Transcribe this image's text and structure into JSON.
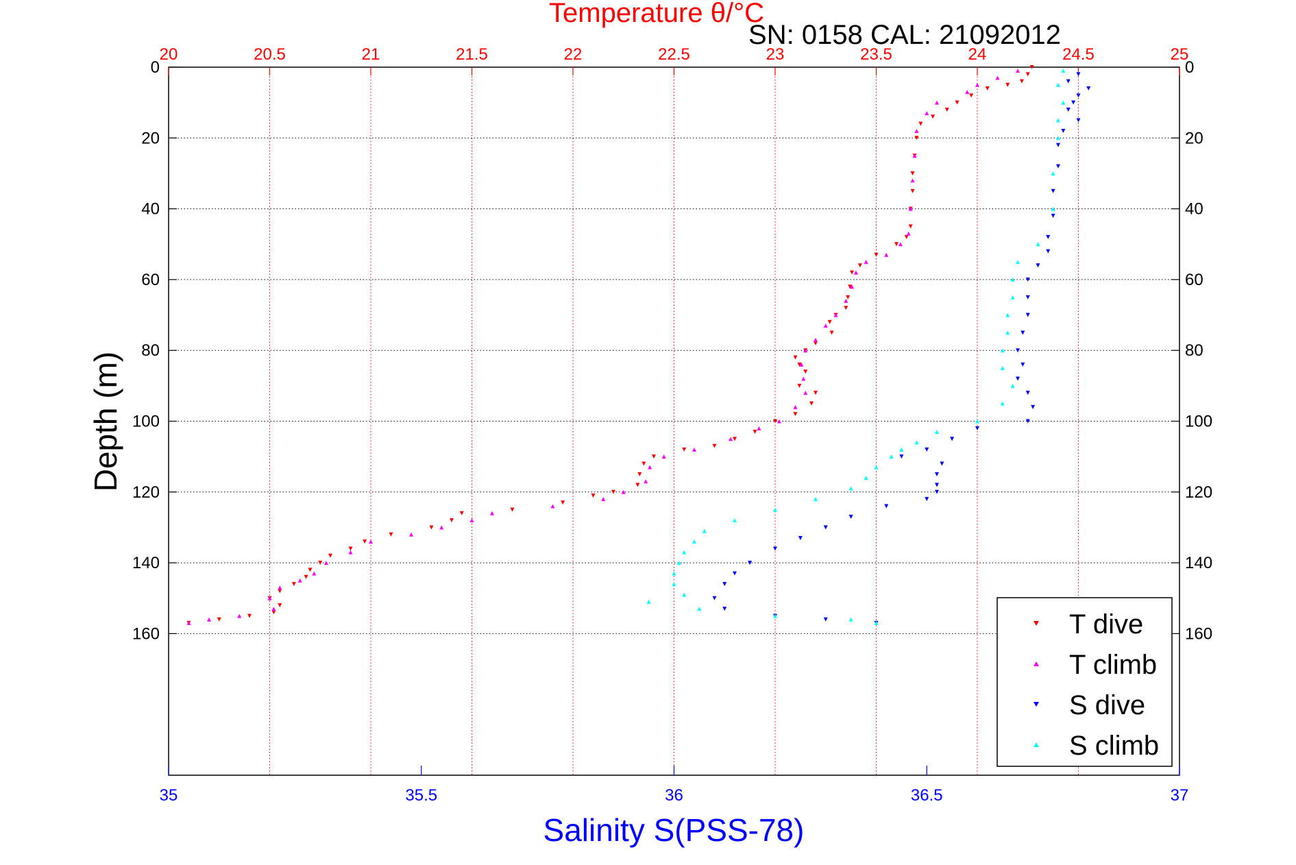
{
  "chart_data": {
    "type": "scatter",
    "title": "Temperature θ/°C",
    "subtitle": "SN: 0158  CAL: 21092012",
    "xlabel_top": "Temperature θ/°C",
    "xlabel_bottom": "Salinity S(PSS-78)",
    "ylabel": "Depth (m)",
    "temp_axis": {
      "range": [
        20,
        25
      ],
      "ticks": [
        "20",
        "20.5",
        "21",
        "21.5",
        "22",
        "22.5",
        "23",
        "23.5",
        "24",
        "24.5",
        "25"
      ]
    },
    "sal_axis": {
      "range": [
        35,
        37
      ],
      "ticks": [
        "35",
        "35.5",
        "36",
        "36.5",
        "37"
      ]
    },
    "depth_axis": {
      "range": [
        0,
        200
      ],
      "reversed": true,
      "ticks": [
        "0",
        "20",
        "40",
        "60",
        "80",
        "100",
        "120",
        "140",
        "160"
      ]
    },
    "grid": true,
    "legend_position": "bottom-right",
    "colors": {
      "t_dive": "#ff0000",
      "t_climb": "#ff00ff",
      "s_dive": "#0000ff",
      "s_climb": "#00ffff",
      "temp_axis": "#ff0000",
      "sal_axis": "#0000ff"
    },
    "series": [
      {
        "name": "T dive",
        "axis": "temperature",
        "marker": "triangle-down",
        "color": "#ff0000",
        "points": [
          [
            24.27,
            0
          ],
          [
            24.25,
            2
          ],
          [
            24.22,
            4
          ],
          [
            24.15,
            5
          ],
          [
            24.05,
            6
          ],
          [
            23.97,
            8
          ],
          [
            23.9,
            10
          ],
          [
            23.85,
            12
          ],
          [
            23.78,
            14
          ],
          [
            23.72,
            16
          ],
          [
            23.7,
            20
          ],
          [
            23.69,
            25
          ],
          [
            23.68,
            30
          ],
          [
            23.68,
            35
          ],
          [
            23.67,
            40
          ],
          [
            23.67,
            45
          ],
          [
            23.65,
            48
          ],
          [
            23.6,
            50
          ],
          [
            23.5,
            53
          ],
          [
            23.42,
            56
          ],
          [
            23.38,
            58
          ],
          [
            23.37,
            62
          ],
          [
            23.36,
            65
          ],
          [
            23.35,
            68
          ],
          [
            23.3,
            70
          ],
          [
            23.27,
            72
          ],
          [
            23.28,
            75
          ],
          [
            23.2,
            78
          ],
          [
            23.15,
            80
          ],
          [
            23.1,
            82
          ],
          [
            23.12,
            84
          ],
          [
            23.15,
            86
          ],
          [
            23.12,
            90
          ],
          [
            23.2,
            92
          ],
          [
            23.18,
            95
          ],
          [
            23.1,
            98
          ],
          [
            23.0,
            100
          ],
          [
            22.9,
            103
          ],
          [
            22.8,
            105
          ],
          [
            22.7,
            107
          ],
          [
            22.55,
            108
          ],
          [
            22.4,
            110
          ],
          [
            22.35,
            112
          ],
          [
            22.33,
            115
          ],
          [
            22.32,
            118
          ],
          [
            22.2,
            120
          ],
          [
            22.1,
            121
          ],
          [
            21.95,
            123
          ],
          [
            21.7,
            125
          ],
          [
            21.45,
            126
          ],
          [
            21.4,
            128
          ],
          [
            21.3,
            130
          ],
          [
            21.1,
            132
          ],
          [
            20.97,
            134
          ],
          [
            20.9,
            136
          ],
          [
            20.8,
            138
          ],
          [
            20.75,
            140
          ],
          [
            20.7,
            142
          ],
          [
            20.68,
            144
          ],
          [
            20.62,
            146
          ],
          [
            20.55,
            148
          ],
          [
            20.5,
            150
          ],
          [
            20.55,
            152
          ],
          [
            20.52,
            154
          ],
          [
            20.4,
            155
          ],
          [
            20.25,
            156
          ],
          [
            20.1,
            157
          ]
        ]
      },
      {
        "name": "T climb",
        "axis": "temperature",
        "marker": "triangle-up",
        "color": "#ff00ff",
        "points": [
          [
            24.2,
            1
          ],
          [
            24.1,
            3
          ],
          [
            24.0,
            5
          ],
          [
            23.95,
            7
          ],
          [
            23.8,
            10
          ],
          [
            23.75,
            13
          ],
          [
            23.7,
            18
          ],
          [
            23.69,
            25
          ],
          [
            23.68,
            32
          ],
          [
            23.67,
            40
          ],
          [
            23.66,
            47
          ],
          [
            23.62,
            50
          ],
          [
            23.55,
            53
          ],
          [
            23.45,
            55
          ],
          [
            23.4,
            58
          ],
          [
            23.38,
            62
          ],
          [
            23.35,
            66
          ],
          [
            23.3,
            70
          ],
          [
            23.25,
            73
          ],
          [
            23.2,
            77
          ],
          [
            23.15,
            80
          ],
          [
            23.13,
            84
          ],
          [
            23.14,
            88
          ],
          [
            23.15,
            92
          ],
          [
            23.1,
            96
          ],
          [
            23.02,
            100
          ],
          [
            22.92,
            102
          ],
          [
            22.78,
            105
          ],
          [
            22.6,
            108
          ],
          [
            22.45,
            110
          ],
          [
            22.38,
            113
          ],
          [
            22.36,
            117
          ],
          [
            22.25,
            120
          ],
          [
            22.15,
            122
          ],
          [
            21.9,
            124
          ],
          [
            21.6,
            126
          ],
          [
            21.5,
            128
          ],
          [
            21.35,
            130
          ],
          [
            21.2,
            132
          ],
          [
            21.0,
            134
          ],
          [
            20.9,
            137
          ],
          [
            20.78,
            140
          ],
          [
            20.72,
            143
          ],
          [
            20.65,
            145
          ],
          [
            20.55,
            147
          ],
          [
            20.5,
            150
          ],
          [
            20.52,
            153
          ],
          [
            20.35,
            155
          ],
          [
            20.2,
            156
          ],
          [
            20.1,
            157
          ]
        ]
      },
      {
        "name": "S dive",
        "axis": "salinity",
        "marker": "triangle-down",
        "color": "#0000ff",
        "points": [
          [
            36.8,
            2
          ],
          [
            36.78,
            4
          ],
          [
            36.82,
            6
          ],
          [
            36.8,
            8
          ],
          [
            36.79,
            10
          ],
          [
            36.78,
            12
          ],
          [
            36.8,
            15
          ],
          [
            36.77,
            18
          ],
          [
            36.76,
            22
          ],
          [
            36.76,
            28
          ],
          [
            36.75,
            35
          ],
          [
            36.75,
            42
          ],
          [
            36.74,
            48
          ],
          [
            36.74,
            52
          ],
          [
            36.72,
            56
          ],
          [
            36.7,
            60
          ],
          [
            36.7,
            65
          ],
          [
            36.7,
            70
          ],
          [
            36.69,
            75
          ],
          [
            36.68,
            80
          ],
          [
            36.69,
            84
          ],
          [
            36.68,
            88
          ],
          [
            36.7,
            92
          ],
          [
            36.71,
            96
          ],
          [
            36.7,
            100
          ],
          [
            36.6,
            102
          ],
          [
            36.55,
            105
          ],
          [
            36.5,
            108
          ],
          [
            36.45,
            110
          ],
          [
            36.53,
            112
          ],
          [
            36.52,
            115
          ],
          [
            36.52,
            118
          ],
          [
            36.52,
            120
          ],
          [
            36.5,
            122
          ],
          [
            36.42,
            124
          ],
          [
            36.35,
            127
          ],
          [
            36.3,
            130
          ],
          [
            36.25,
            133
          ],
          [
            36.2,
            136
          ],
          [
            36.15,
            140
          ],
          [
            36.12,
            143
          ],
          [
            36.1,
            146
          ],
          [
            36.08,
            150
          ],
          [
            36.1,
            153
          ],
          [
            36.2,
            155
          ],
          [
            36.3,
            156
          ],
          [
            36.4,
            157
          ]
        ]
      },
      {
        "name": "S climb",
        "axis": "salinity",
        "marker": "triangle-up",
        "color": "#00ffff",
        "points": [
          [
            36.77,
            1
          ],
          [
            36.76,
            5
          ],
          [
            36.77,
            10
          ],
          [
            36.76,
            15
          ],
          [
            36.76,
            20
          ],
          [
            36.75,
            30
          ],
          [
            36.75,
            40
          ],
          [
            36.72,
            50
          ],
          [
            36.68,
            55
          ],
          [
            36.67,
            60
          ],
          [
            36.67,
            65
          ],
          [
            36.66,
            70
          ],
          [
            36.66,
            75
          ],
          [
            36.65,
            80
          ],
          [
            36.65,
            85
          ],
          [
            36.67,
            90
          ],
          [
            36.65,
            95
          ],
          [
            36.6,
            100
          ],
          [
            36.52,
            103
          ],
          [
            36.48,
            106
          ],
          [
            36.45,
            108
          ],
          [
            36.43,
            110
          ],
          [
            36.4,
            113
          ],
          [
            36.38,
            116
          ],
          [
            36.35,
            119
          ],
          [
            36.28,
            122
          ],
          [
            36.2,
            125
          ],
          [
            36.12,
            128
          ],
          [
            36.06,
            131
          ],
          [
            36.04,
            134
          ],
          [
            36.02,
            137
          ],
          [
            36.01,
            140
          ],
          [
            36.0,
            143
          ],
          [
            36.0,
            146
          ],
          [
            36.02,
            149
          ],
          [
            35.95,
            151
          ],
          [
            36.05,
            153
          ],
          [
            36.2,
            155
          ],
          [
            36.35,
            156
          ],
          [
            36.4,
            157
          ]
        ]
      }
    ],
    "legend": [
      "T dive",
      "T climb",
      "S dive",
      "S climb"
    ]
  }
}
